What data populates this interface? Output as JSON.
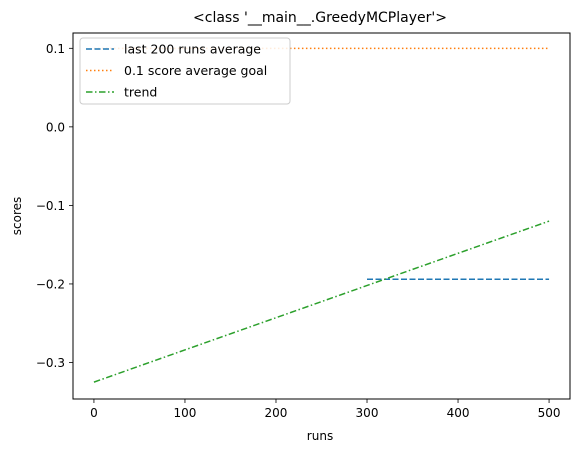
{
  "chart_data": {
    "type": "line",
    "title": "<class '__main__.GreedyMCPlayer'>",
    "xlabel": "runs",
    "ylabel": "scores",
    "xlim": [
      -23,
      523
    ],
    "ylim": [
      -0.3465,
      0.1195
    ],
    "xticks": [
      0,
      100,
      200,
      300,
      400,
      500
    ],
    "xtick_labels": [
      "0",
      "100",
      "200",
      "300",
      "400",
      "500"
    ],
    "yticks": [
      -0.3,
      -0.2,
      -0.1,
      0.0,
      0.1
    ],
    "ytick_labels": [
      "−0.3",
      "−0.2",
      "−0.1",
      "0.0",
      "0.1"
    ],
    "grid": false,
    "legend_position": "top-left",
    "series": [
      {
        "name": "last 200 runs average",
        "color": "#1f77b4",
        "style": "dashed",
        "x": [
          300,
          500
        ],
        "y": [
          -0.194,
          -0.194
        ]
      },
      {
        "name": "0.1 score average goal",
        "color": "#ff7f0e",
        "style": "dotted",
        "x": [
          0,
          500
        ],
        "y": [
          0.1,
          0.1
        ]
      },
      {
        "name": "trend",
        "color": "#2ca02c",
        "style": "dashdot",
        "x": [
          0,
          500
        ],
        "y": [
          -0.325,
          -0.12
        ]
      }
    ]
  }
}
